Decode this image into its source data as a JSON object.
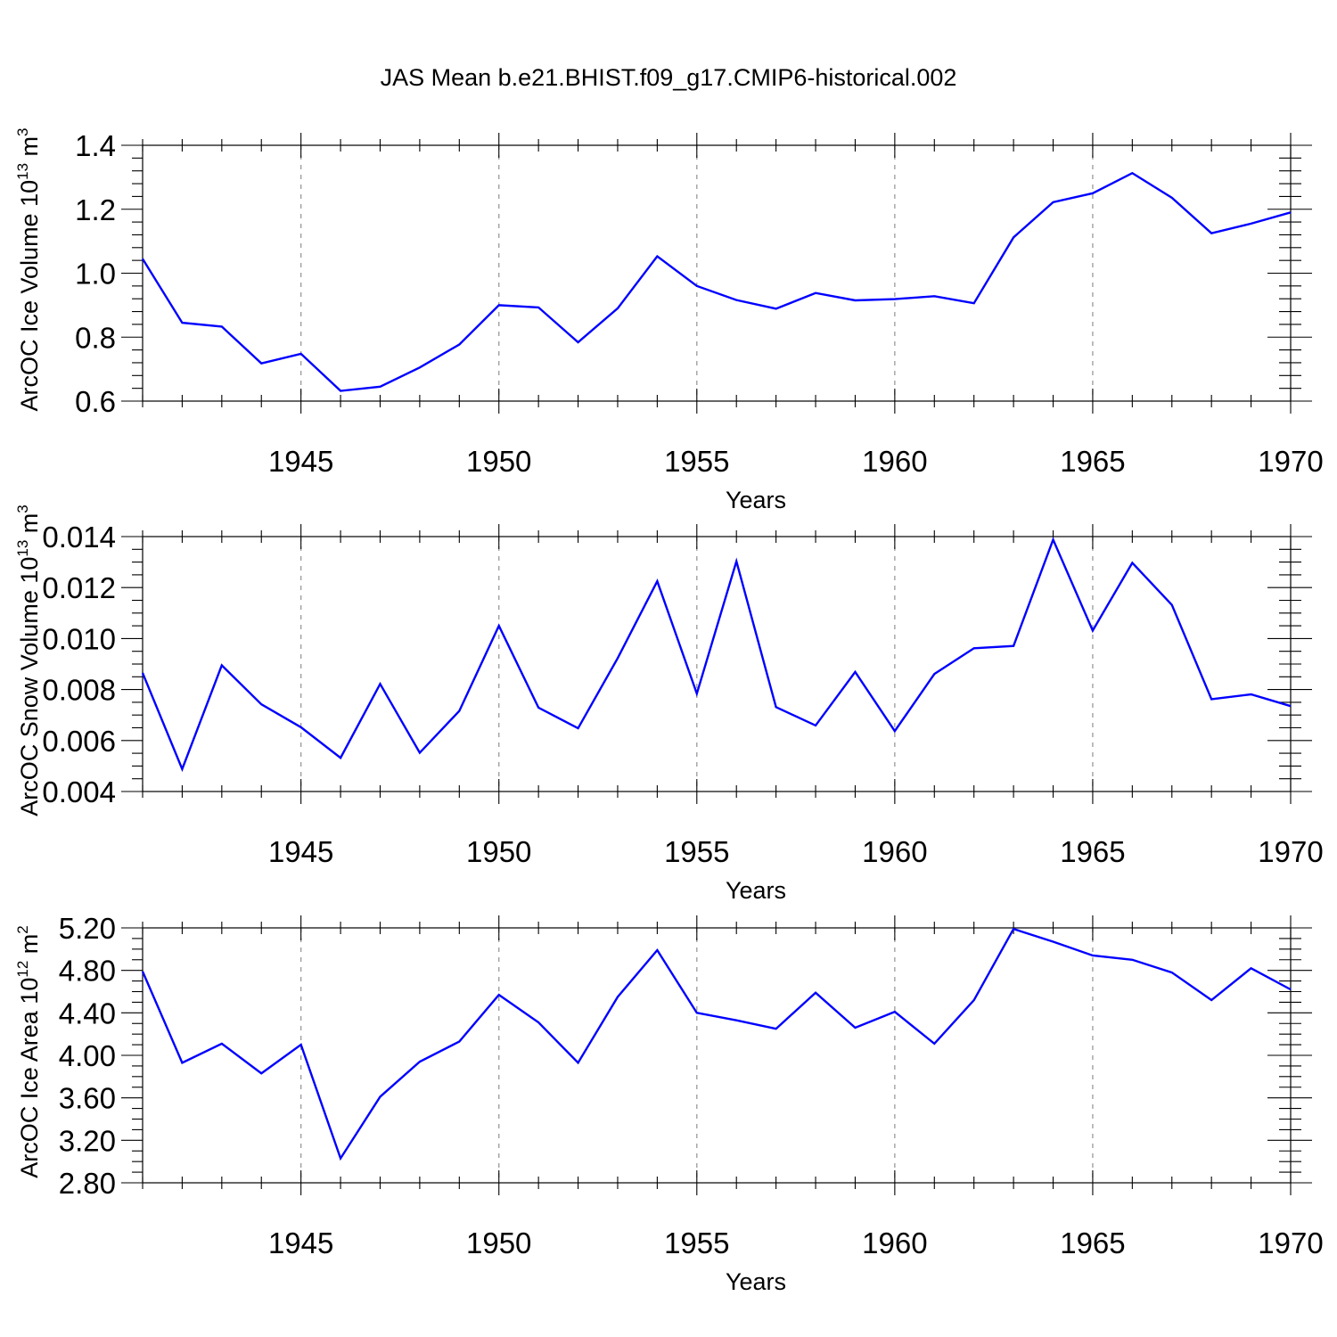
{
  "title": "JAS Mean b.e21.BHIST.f09_g17.CMIP6-historical.002",
  "chart_data": [
    {
      "type": "line",
      "name": "ice-volume",
      "ylabel": "ArcOC Ice Volume 10",
      "ylabel_exp": "13",
      "ylabel_unit": " m",
      "ylabel_unit_exp": "3",
      "xlabel": "Years",
      "xlim": [
        1941,
        1970
      ],
      "ylim": [
        0.6,
        1.4
      ],
      "yticks": [
        0.6,
        0.8,
        1.0,
        1.2,
        1.4
      ],
      "ytick_labels": [
        "0.6",
        "0.8",
        "1.0",
        "1.2",
        "1.4"
      ],
      "xticks": [
        1945,
        1950,
        1955,
        1960,
        1965,
        1970
      ],
      "xtick_labels": [
        "1945",
        "1950",
        "1955",
        "1960",
        "1965",
        "1970"
      ],
      "y_minor_step": 0.04,
      "color": "#0000ff",
      "x": [
        1941,
        1942,
        1943,
        1944,
        1945,
        1946,
        1947,
        1948,
        1949,
        1950,
        1951,
        1952,
        1953,
        1954,
        1955,
        1956,
        1957,
        1958,
        1959,
        1960,
        1961,
        1962,
        1963,
        1964,
        1965,
        1966,
        1967,
        1968,
        1969,
        1970
      ],
      "values": [
        1.045,
        0.845,
        0.833,
        0.718,
        0.748,
        0.632,
        0.645,
        0.705,
        0.777,
        0.9,
        0.893,
        0.784,
        0.89,
        1.053,
        0.96,
        0.916,
        0.889,
        0.938,
        0.915,
        0.919,
        0.928,
        0.906,
        1.112,
        1.222,
        1.25,
        1.313,
        1.236,
        1.125,
        1.155,
        1.19
      ]
    },
    {
      "type": "line",
      "name": "snow-volume",
      "ylabel": "ArcOC Snow Volume 10",
      "ylabel_exp": "13",
      "ylabel_unit": " m",
      "ylabel_unit_exp": "3",
      "xlabel": "Years",
      "xlim": [
        1941,
        1970
      ],
      "ylim": [
        0.004,
        0.014
      ],
      "yticks": [
        0.004,
        0.006,
        0.008,
        0.01,
        0.012,
        0.014
      ],
      "ytick_labels": [
        "0.004",
        "0.006",
        "0.008",
        "0.010",
        "0.012",
        "0.014"
      ],
      "xticks": [
        1945,
        1950,
        1955,
        1960,
        1965,
        1970
      ],
      "xtick_labels": [
        "1945",
        "1950",
        "1955",
        "1960",
        "1965",
        "1970"
      ],
      "y_minor_step": 0.0005,
      "color": "#0000ff",
      "x": [
        1941,
        1942,
        1943,
        1944,
        1945,
        1946,
        1947,
        1948,
        1949,
        1950,
        1951,
        1952,
        1953,
        1954,
        1955,
        1956,
        1957,
        1958,
        1959,
        1960,
        1961,
        1962,
        1963,
        1964,
        1965,
        1966,
        1967,
        1968,
        1969,
        1970
      ],
      "values": [
        0.00865,
        0.00488,
        0.00895,
        0.00742,
        0.00652,
        0.00532,
        0.00822,
        0.00552,
        0.00716,
        0.0105,
        0.00729,
        0.00648,
        0.00923,
        0.01225,
        0.00784,
        0.01303,
        0.00731,
        0.00659,
        0.00869,
        0.00637,
        0.00861,
        0.00962,
        0.00971,
        0.01388,
        0.01031,
        0.01297,
        0.01132,
        0.00762,
        0.00781,
        0.00735
      ]
    },
    {
      "type": "line",
      "name": "ice-area",
      "ylabel": "ArcOC Ice Area 10",
      "ylabel_exp": "12",
      "ylabel_unit": " m",
      "ylabel_unit_exp": "2",
      "xlabel": "Years",
      "xlim": [
        1941,
        1970
      ],
      "ylim": [
        2.8,
        5.2
      ],
      "yticks": [
        2.8,
        3.2,
        3.6,
        4.0,
        4.4,
        4.8,
        5.2
      ],
      "ytick_labels": [
        "2.80",
        "3.20",
        "3.60",
        "4.00",
        "4.40",
        "4.80",
        "5.20"
      ],
      "xticks": [
        1945,
        1950,
        1955,
        1960,
        1965,
        1970
      ],
      "xtick_labels": [
        "1945",
        "1950",
        "1955",
        "1960",
        "1965",
        "1970"
      ],
      "y_minor_step": 0.1,
      "color": "#0000ff",
      "x": [
        1941,
        1942,
        1943,
        1944,
        1945,
        1946,
        1947,
        1948,
        1949,
        1950,
        1951,
        1952,
        1953,
        1954,
        1955,
        1956,
        1957,
        1958,
        1959,
        1960,
        1961,
        1962,
        1963,
        1964,
        1965,
        1966,
        1967,
        1968,
        1969,
        1970
      ],
      "values": [
        4.79,
        3.93,
        4.11,
        3.83,
        4.1,
        3.03,
        3.61,
        3.94,
        4.13,
        4.57,
        4.31,
        3.93,
        4.55,
        4.99,
        4.4,
        4.33,
        4.25,
        4.59,
        4.26,
        4.41,
        4.11,
        4.52,
        5.19,
        5.07,
        4.94,
        4.9,
        4.78,
        4.52,
        4.82,
        4.62
      ]
    }
  ]
}
